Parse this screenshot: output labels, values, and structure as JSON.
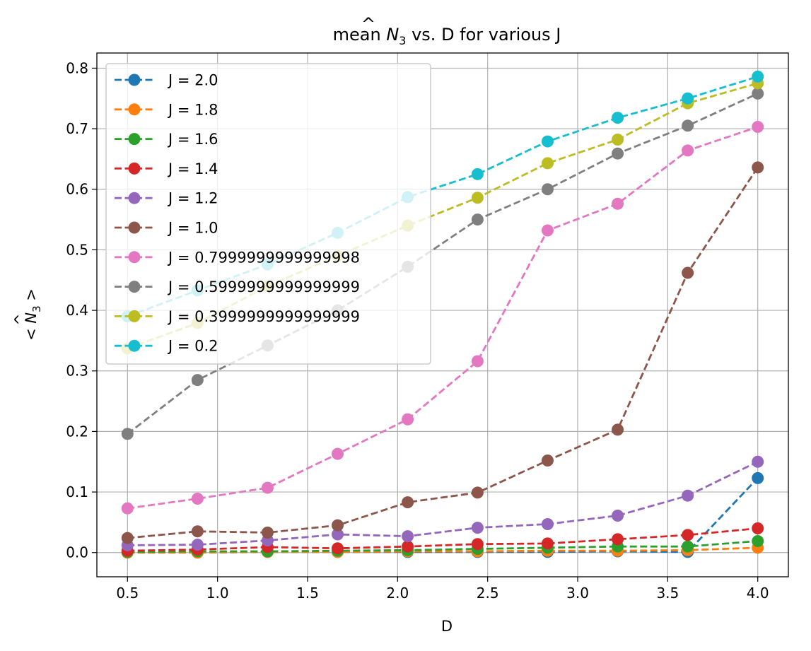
{
  "chart_data": {
    "type": "line",
    "title_prefix": "mean ",
    "title_symbol": "N",
    "title_hat": "^",
    "title_subscript": "3",
    "title_suffix": " vs. D for various J",
    "xlabel": "D",
    "ylabel_prefix": "< ",
    "ylabel_symbol": "N",
    "ylabel_hat": "^",
    "ylabel_subscript": "3",
    "ylabel_suffix": " >",
    "xlim": [
      0.33,
      4.17
    ],
    "ylim": [
      -0.04,
      0.825
    ],
    "xticks": [
      0.5,
      1.0,
      1.5,
      2.0,
      2.5,
      3.0,
      3.5,
      4.0
    ],
    "xtick_labels": [
      "0.5",
      "1.0",
      "1.5",
      "2.0",
      "2.5",
      "3.0",
      "3.5",
      "4.0"
    ],
    "yticks": [
      0.0,
      0.1,
      0.2,
      0.3,
      0.4,
      0.5,
      0.6,
      0.7,
      0.8
    ],
    "ytick_labels": [
      "0.0",
      "0.1",
      "0.2",
      "0.3",
      "0.4",
      "0.5",
      "0.6",
      "0.7",
      "0.8"
    ],
    "grid": true,
    "legend_position": "upper-left",
    "x": [
      0.5,
      0.889,
      1.278,
      1.667,
      2.056,
      2.444,
      2.833,
      3.222,
      3.611,
      4.0
    ],
    "series": [
      {
        "name": "J = 2.0",
        "color": "#1f77b4",
        "values": [
          0.0,
          0.0,
          0.001,
          0.001,
          0.001,
          0.001,
          0.001,
          0.002,
          0.001,
          0.123
        ]
      },
      {
        "name": "J = 1.8",
        "color": "#ff7f0e",
        "values": [
          0.0,
          0.0,
          0.001,
          0.001,
          0.002,
          0.002,
          0.003,
          0.003,
          0.004,
          0.008
        ]
      },
      {
        "name": "J = 1.6",
        "color": "#2ca02c",
        "values": [
          0.001,
          0.002,
          0.002,
          0.003,
          0.004,
          0.006,
          0.008,
          0.01,
          0.01,
          0.019
        ]
      },
      {
        "name": "J = 1.4",
        "color": "#d62728",
        "values": [
          0.003,
          0.005,
          0.009,
          0.007,
          0.01,
          0.014,
          0.015,
          0.022,
          0.029,
          0.04
        ]
      },
      {
        "name": "J = 1.2",
        "color": "#9467bd",
        "values": [
          0.012,
          0.013,
          0.02,
          0.03,
          0.027,
          0.041,
          0.047,
          0.061,
          0.094,
          0.15
        ]
      },
      {
        "name": "J = 1.0",
        "color": "#8c564b",
        "values": [
          0.024,
          0.035,
          0.033,
          0.045,
          0.083,
          0.099,
          0.152,
          0.203,
          0.462,
          0.636
        ]
      },
      {
        "name": "J = 0.7999999999999998",
        "color": "#e377c2",
        "values": [
          0.073,
          0.089,
          0.107,
          0.163,
          0.22,
          0.316,
          0.532,
          0.576,
          0.664,
          0.703
        ]
      },
      {
        "name": "J = 0.5999999999999999",
        "color": "#7f7f7f",
        "values": [
          0.196,
          0.285,
          0.342,
          0.4,
          0.472,
          0.55,
          0.6,
          0.659,
          0.705,
          0.758
        ]
      },
      {
        "name": "J = 0.3999999999999999",
        "color": "#bcbd22",
        "values": [
          0.337,
          0.379,
          0.44,
          0.49,
          0.54,
          0.586,
          0.643,
          0.682,
          0.742,
          0.775
        ]
      },
      {
        "name": "J = 0.2",
        "color": "#17becf",
        "values": [
          0.39,
          0.433,
          0.476,
          0.528,
          0.587,
          0.625,
          0.679,
          0.718,
          0.75,
          0.786
        ]
      }
    ]
  }
}
